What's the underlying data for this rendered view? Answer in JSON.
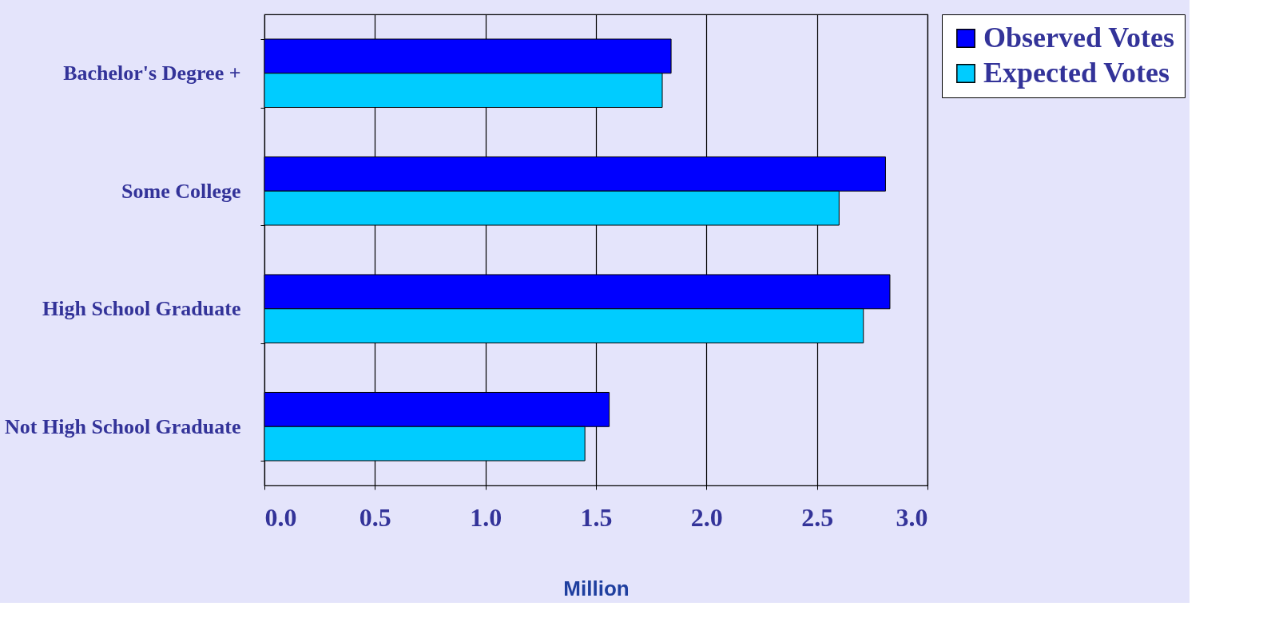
{
  "chart_data": {
    "type": "bar",
    "orientation": "horizontal",
    "categories": [
      "Bachelor's Degree +",
      "Some College",
      "High School Graduate",
      "Not High School Graduate"
    ],
    "series": [
      {
        "name": "Observed Votes",
        "color": "#0000ff",
        "values": [
          1.84,
          2.81,
          2.83,
          1.56
        ]
      },
      {
        "name": "Expected Votes",
        "color": "#00ccff",
        "values": [
          1.8,
          2.6,
          2.71,
          1.45
        ]
      }
    ],
    "xlabel": "Million",
    "xlim": [
      0,
      3
    ],
    "xticks": [
      {
        "value": 0,
        "label": "0.0"
      },
      0.5,
      {
        "value": 1,
        "label": "1.0"
      },
      1.5,
      {
        "value": 2,
        "label": "2.0"
      },
      2.5,
      {
        "value": 3,
        "label": "3.0"
      }
    ],
    "grid": "x",
    "legend": "right"
  }
}
